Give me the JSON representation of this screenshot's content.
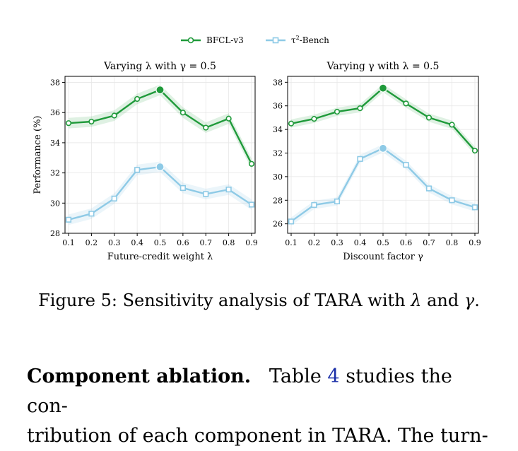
{
  "legend": [
    {
      "name": "BFCL-v3",
      "color": "#1f9a3a"
    },
    {
      "name_sup": "2",
      "name_base": "τ",
      "name_rest": "-Bench",
      "color": "#8ecae6"
    }
  ],
  "chart_data": [
    {
      "type": "line",
      "title": "Varying λ with γ = 0.5",
      "xlabel": "Future-credit weight λ",
      "ylabel": "Performance (%)",
      "x": [
        0.1,
        0.2,
        0.3,
        0.4,
        0.5,
        0.6,
        0.7,
        0.8,
        0.9
      ],
      "ylim": [
        28,
        38.4
      ],
      "yticks": [
        28,
        30,
        32,
        34,
        36,
        38
      ],
      "grid": true,
      "series": [
        {
          "name": "BFCL-v3",
          "color": "#1f9a3a",
          "marker": "circle",
          "values": [
            35.3,
            35.4,
            35.8,
            36.9,
            37.5,
            36.0,
            35.0,
            35.6,
            32.6
          ]
        },
        {
          "name": "τ2-Bench",
          "color": "#8ecae6",
          "marker": "square",
          "values": [
            28.9,
            29.3,
            30.3,
            32.2,
            32.4,
            31.0,
            30.6,
            30.9,
            29.9
          ]
        }
      ],
      "highlight_index": 4
    },
    {
      "type": "line",
      "title": "Varying γ with λ = 0.5",
      "xlabel": "Discount factor γ",
      "ylabel": "",
      "x": [
        0.1,
        0.2,
        0.3,
        0.4,
        0.5,
        0.6,
        0.7,
        0.8,
        0.9
      ],
      "ylim": [
        25.2,
        38.5
      ],
      "yticks": [
        26,
        28,
        30,
        32,
        34,
        36,
        38
      ],
      "grid": true,
      "series": [
        {
          "name": "BFCL-v3",
          "color": "#1f9a3a",
          "marker": "circle",
          "values": [
            34.5,
            34.9,
            35.5,
            35.8,
            37.5,
            36.2,
            35.0,
            34.4,
            32.2
          ]
        },
        {
          "name": "τ2-Bench",
          "color": "#8ecae6",
          "marker": "square",
          "values": [
            26.2,
            27.6,
            27.9,
            31.5,
            32.4,
            31.0,
            29.0,
            28.0,
            27.4
          ]
        }
      ],
      "highlight_index": 4
    }
  ],
  "caption": {
    "prefix": "Figure 5: Sensitivity analysis of TARA with ",
    "sym1": "λ",
    "mid": " and ",
    "sym2": "γ",
    "suffix": "."
  },
  "paragraph": {
    "heading": "Component ablation.",
    "line1_a": "Table ",
    "line1_ref": "4",
    "line1_b": " studies the con-",
    "line2": "tribution of each component in TARA. The turn-"
  }
}
